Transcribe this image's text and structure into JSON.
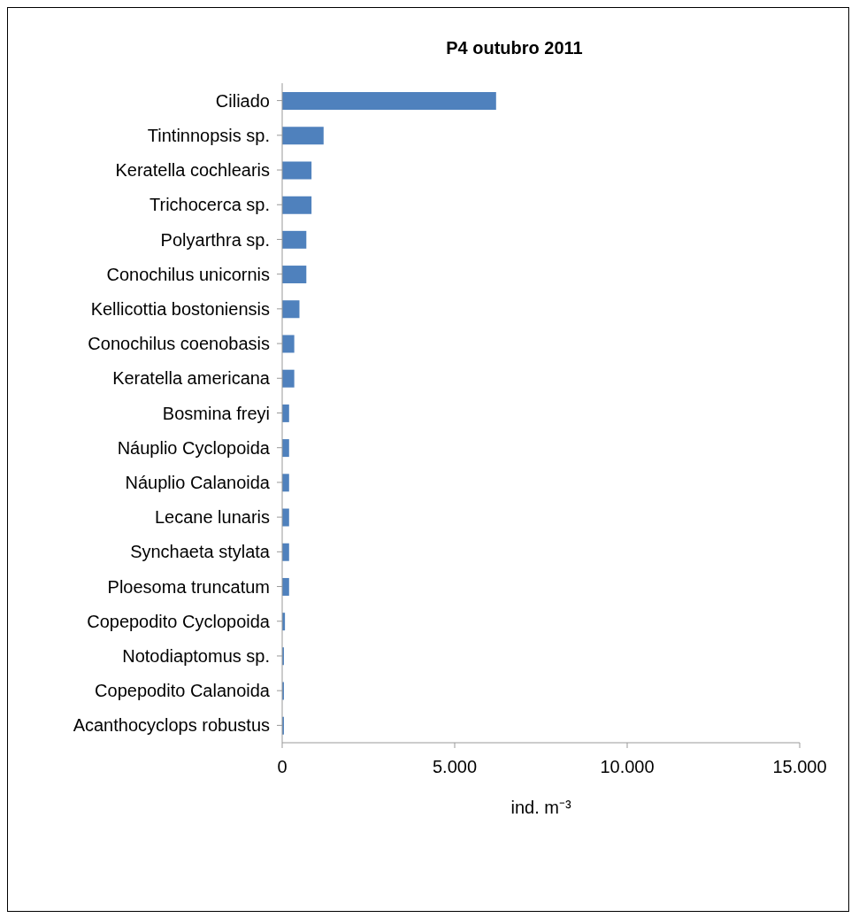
{
  "chart_data": {
    "type": "bar",
    "orientation": "horizontal",
    "title": "P4 outubro  2011",
    "xlabel": "ind. m⁻³",
    "categories": [
      "Ciliado",
      "Tintinnopsis sp.",
      "Keratella cochlearis",
      "Trichocerca sp.",
      "Polyarthra sp.",
      "Conochilus unicornis",
      "Kellicottia bostoniensis",
      "Conochilus coenobasis",
      "Keratella americana",
      "Bosmina freyi",
      "Náuplio Cyclopoida",
      "Náuplio Calanoida",
      "Lecane lunaris",
      "Synchaeta stylata",
      "Ploesoma truncatum",
      "Copepodito Cyclopoida",
      "Notodiaptomus sp.",
      "Copepodito Calanoida",
      "Acanthocyclops robustus"
    ],
    "values": [
      6200,
      1200,
      850,
      850,
      700,
      700,
      500,
      350,
      350,
      200,
      200,
      200,
      200,
      200,
      200,
      80,
      50,
      50,
      50
    ],
    "color": "#4f81bd",
    "xlim": [
      0,
      15000
    ],
    "xticks": [
      0,
      {
        "value": 5000,
        "label": "5.000"
      },
      {
        "value": 10000,
        "label": "10.000"
      },
      {
        "value": 15000,
        "label": "15.000"
      }
    ],
    "grid": false,
    "legend": false
  }
}
